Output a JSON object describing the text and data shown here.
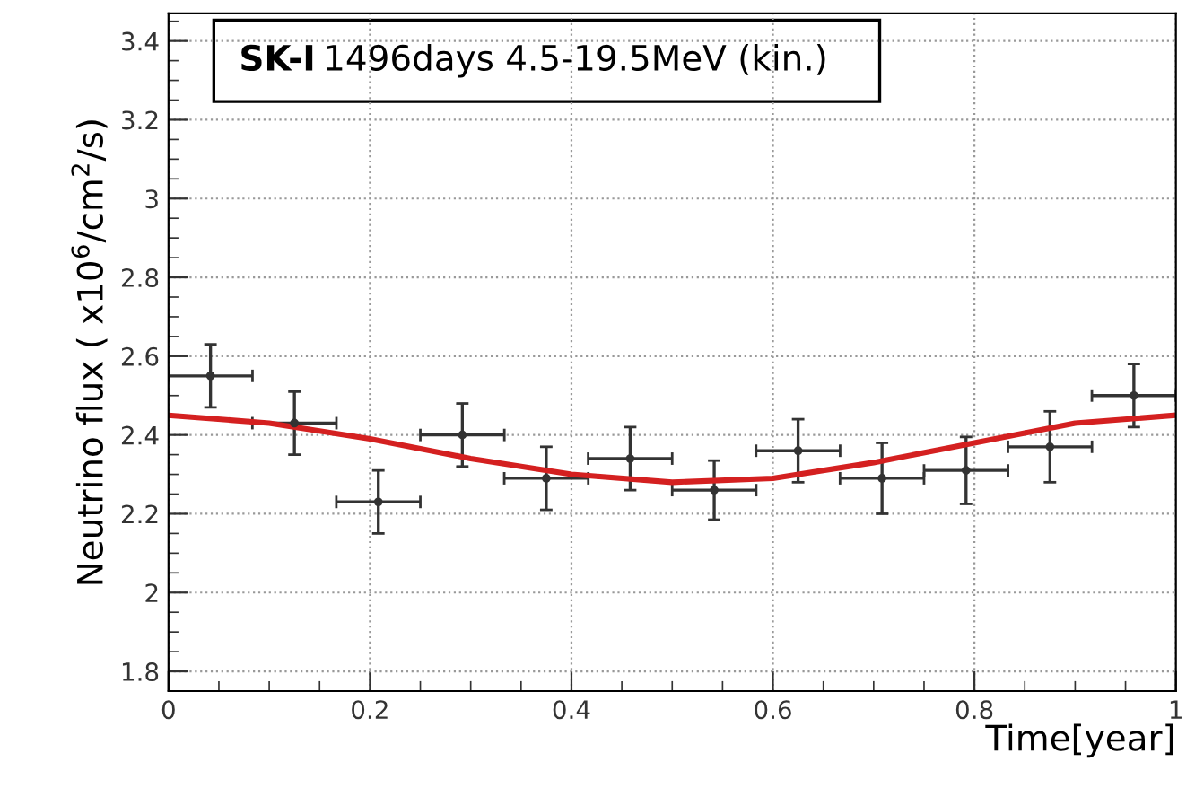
{
  "chart_data": {
    "type": "scatter",
    "title": "SK-I 1496days 4.5-19.5MeV (kin.)",
    "xlabel": "Time[year]",
    "ylabel": "Neutrino flux ( x10$^{6}$/cm$^{2}$/s)",
    "series": [
      {
        "color": "#333333",
        "x": [
          0.0417,
          0.125,
          0.2083,
          0.2917,
          0.375,
          0.4583,
          0.5417,
          0.625,
          0.7083,
          0.7917,
          0.875,
          0.9583
        ],
        "values": [
          2.55,
          2.43,
          2.23,
          2.4,
          2.29,
          2.34,
          2.26,
          2.36,
          2.29,
          2.31,
          2.37,
          2.5
        ],
        "errors": [
          0.08,
          0.08,
          0.08,
          0.08,
          0.08,
          0.08,
          0.075,
          0.08,
          0.09,
          0.085,
          0.09,
          0.08
        ],
        "xerrors": [
          0.0417,
          0.0417,
          0.0417,
          0.0417,
          0.0417,
          0.0417,
          0.0417,
          0.0417,
          0.0417,
          0.0417,
          0.0417,
          0.0417
        ]
      },
      {
        "type": "line",
        "color": "#d42020",
        "x": [
          0,
          0.1,
          0.2,
          0.3,
          0.4,
          0.5,
          0.6,
          0.7,
          0.8,
          0.9,
          1.0
        ],
        "values": [
          2.45,
          2.43,
          2.39,
          2.34,
          2.3,
          2.28,
          2.29,
          2.33,
          2.38,
          2.43,
          2.45
        ]
      }
    ],
    "xlim": [
      0,
      1
    ],
    "ylim": [
      1.75,
      3.47
    ],
    "xticks": [
      0,
      0.2,
      0.4,
      0.6,
      0.8,
      1
    ],
    "yticks": [
      1.8,
      2,
      2.2,
      2.4,
      2.6,
      2.8,
      3,
      3.2,
      3.4
    ],
    "grid": true,
    "legend": false
  }
}
